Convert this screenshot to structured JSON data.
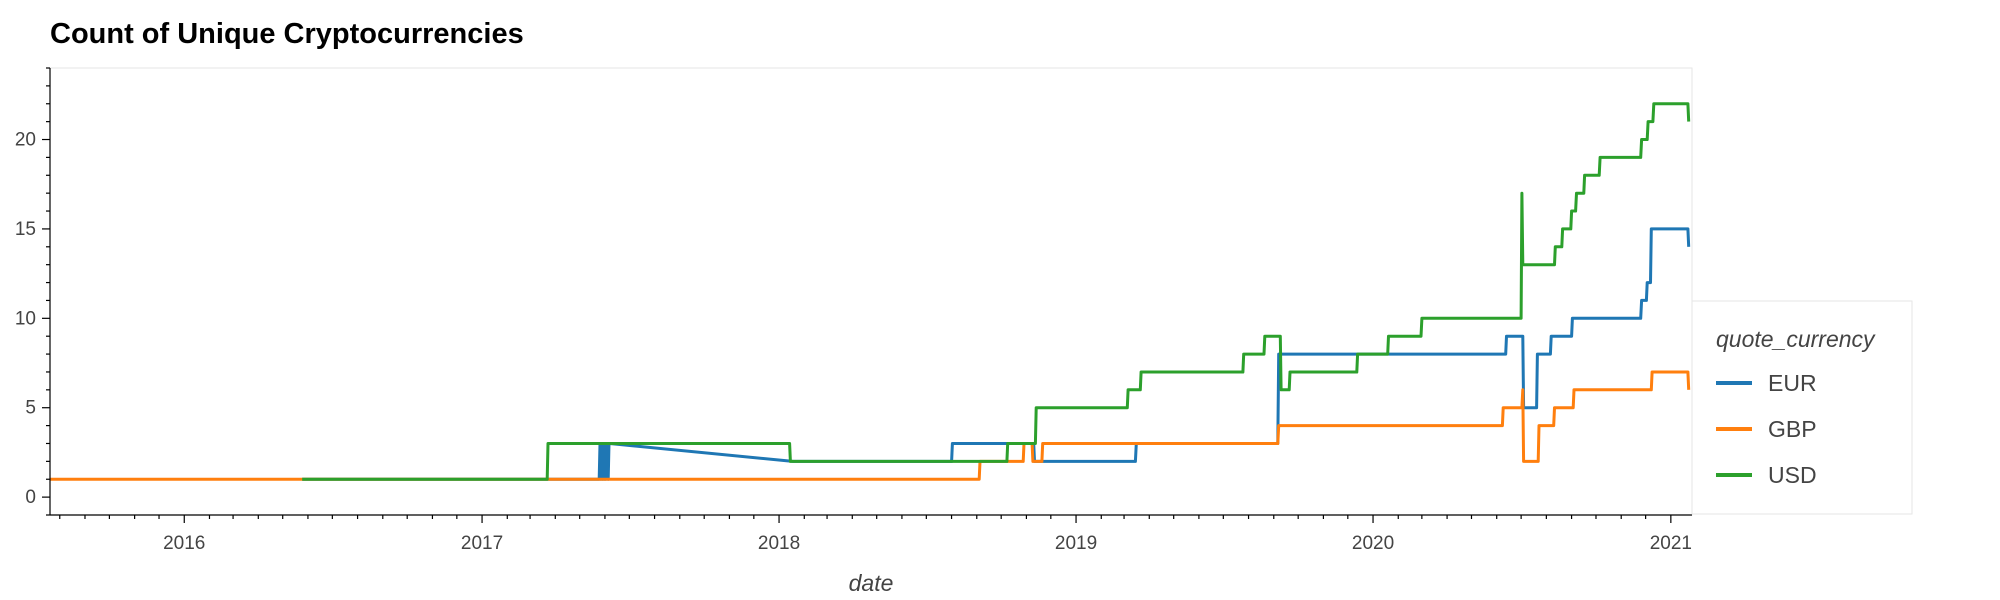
{
  "chart_data": {
    "type": "line",
    "title": "Count of Unique Cryptocurrencies",
    "xlabel": "date",
    "ylabel": "",
    "x_ticks": [
      "2016",
      "2017",
      "2018",
      "2019",
      "2020",
      "2021"
    ],
    "y_ticks": [
      0,
      5,
      10,
      15,
      20
    ],
    "xlim": [
      "2015-07-20",
      "2021-01-27"
    ],
    "ylim": [
      -1,
      24
    ],
    "grid": false,
    "legend": {
      "title": "quote_currency",
      "position": "right"
    },
    "series": [
      {
        "name": "EUR",
        "color": "#1f77b4",
        "points": [
          [
            "2016-05-25",
            1
          ],
          [
            "2017-05-25",
            1
          ],
          [
            "2017-05-26",
            3
          ],
          [
            "2017-05-27",
            1
          ],
          [
            "2017-05-28",
            3
          ],
          [
            "2017-05-29",
            1
          ],
          [
            "2017-05-30",
            3
          ],
          [
            "2017-05-31",
            1
          ],
          [
            "2017-06-01",
            3
          ],
          [
            "2017-06-02",
            1
          ],
          [
            "2017-06-04",
            3
          ],
          [
            "2017-06-05",
            1
          ],
          [
            "2017-06-06",
            3
          ],
          [
            "2017-06-07",
            3
          ],
          [
            "2018-01-18",
            2
          ],
          [
            "2018-08-01",
            2
          ],
          [
            "2018-08-02",
            3
          ],
          [
            "2018-11-10",
            3
          ],
          [
            "2018-11-11",
            2
          ],
          [
            "2019-03-15",
            2
          ],
          [
            "2019-03-16",
            3
          ],
          [
            "2019-09-06",
            3
          ],
          [
            "2019-09-07",
            8
          ],
          [
            "2020-06-12",
            8
          ],
          [
            "2020-06-13",
            9
          ],
          [
            "2020-07-03",
            9
          ],
          [
            "2020-07-04",
            5
          ],
          [
            "2020-07-20",
            5
          ],
          [
            "2020-07-21",
            8
          ],
          [
            "2020-08-06",
            8
          ],
          [
            "2020-08-07",
            9
          ],
          [
            "2020-09-01",
            9
          ],
          [
            "2020-09-02",
            10
          ],
          [
            "2020-11-25",
            10
          ],
          [
            "2020-11-26",
            11
          ],
          [
            "2020-12-02",
            11
          ],
          [
            "2020-12-03",
            12
          ],
          [
            "2020-12-07",
            12
          ],
          [
            "2020-12-08",
            15
          ],
          [
            "2021-01-22",
            15
          ],
          [
            "2021-01-23",
            14
          ]
        ]
      },
      {
        "name": "GBP",
        "color": "#ff7f0e",
        "points": [
          [
            "2015-07-20",
            1
          ],
          [
            "2018-09-04",
            1
          ],
          [
            "2018-09-05",
            2
          ],
          [
            "2018-10-28",
            2
          ],
          [
            "2018-10-29",
            3
          ],
          [
            "2018-11-08",
            3
          ],
          [
            "2018-11-09",
            2
          ],
          [
            "2018-11-20",
            2
          ],
          [
            "2018-11-21",
            3
          ],
          [
            "2019-09-06",
            3
          ],
          [
            "2019-09-07",
            4
          ],
          [
            "2020-06-08",
            4
          ],
          [
            "2020-06-09",
            5
          ],
          [
            "2020-07-02",
            5
          ],
          [
            "2020-07-03",
            6
          ],
          [
            "2020-07-04",
            2
          ],
          [
            "2020-07-22",
            2
          ],
          [
            "2020-07-23",
            4
          ],
          [
            "2020-08-10",
            4
          ],
          [
            "2020-08-11",
            5
          ],
          [
            "2020-09-03",
            5
          ],
          [
            "2020-09-04",
            6
          ],
          [
            "2020-12-08",
            6
          ],
          [
            "2020-12-09",
            7
          ],
          [
            "2021-01-22",
            7
          ],
          [
            "2021-01-23",
            6
          ]
        ]
      },
      {
        "name": "USD",
        "color": "#2ca02c",
        "points": [
          [
            "2016-05-25",
            1
          ],
          [
            "2017-03-22",
            1
          ],
          [
            "2017-03-23",
            3
          ],
          [
            "2018-01-14",
            3
          ],
          [
            "2018-01-15",
            2
          ],
          [
            "2018-07-28",
            2
          ],
          [
            "2018-07-29",
            2
          ],
          [
            "2018-10-08",
            2
          ],
          [
            "2018-10-09",
            3
          ],
          [
            "2018-11-12",
            3
          ],
          [
            "2018-11-13",
            5
          ],
          [
            "2019-03-05",
            5
          ],
          [
            "2019-03-06",
            6
          ],
          [
            "2019-03-21",
            6
          ],
          [
            "2019-03-22",
            7
          ],
          [
            "2019-07-25",
            7
          ],
          [
            "2019-07-26",
            8
          ],
          [
            "2019-08-20",
            8
          ],
          [
            "2019-08-21",
            9
          ],
          [
            "2019-09-09",
            9
          ],
          [
            "2019-09-10",
            6
          ],
          [
            "2019-09-20",
            6
          ],
          [
            "2019-09-21",
            7
          ],
          [
            "2019-12-12",
            7
          ],
          [
            "2019-12-13",
            8
          ],
          [
            "2020-01-19",
            8
          ],
          [
            "2020-01-20",
            9
          ],
          [
            "2020-02-29",
            9
          ],
          [
            "2020-03-01",
            10
          ],
          [
            "2020-07-01",
            10
          ],
          [
            "2020-07-02",
            17
          ],
          [
            "2020-07-03",
            13
          ],
          [
            "2020-08-11",
            13
          ],
          [
            "2020-08-12",
            14
          ],
          [
            "2020-08-20",
            14
          ],
          [
            "2020-08-21",
            15
          ],
          [
            "2020-08-31",
            15
          ],
          [
            "2020-09-01",
            16
          ],
          [
            "2020-09-06",
            16
          ],
          [
            "2020-09-07",
            17
          ],
          [
            "2020-09-16",
            17
          ],
          [
            "2020-09-17",
            18
          ],
          [
            "2020-10-05",
            18
          ],
          [
            "2020-10-06",
            19
          ],
          [
            "2020-11-25",
            19
          ],
          [
            "2020-11-26",
            20
          ],
          [
            "2020-12-03",
            20
          ],
          [
            "2020-12-04",
            21
          ],
          [
            "2020-12-10",
            21
          ],
          [
            "2020-12-11",
            22
          ],
          [
            "2021-01-22",
            22
          ],
          [
            "2021-01-23",
            21
          ]
        ]
      }
    ]
  }
}
